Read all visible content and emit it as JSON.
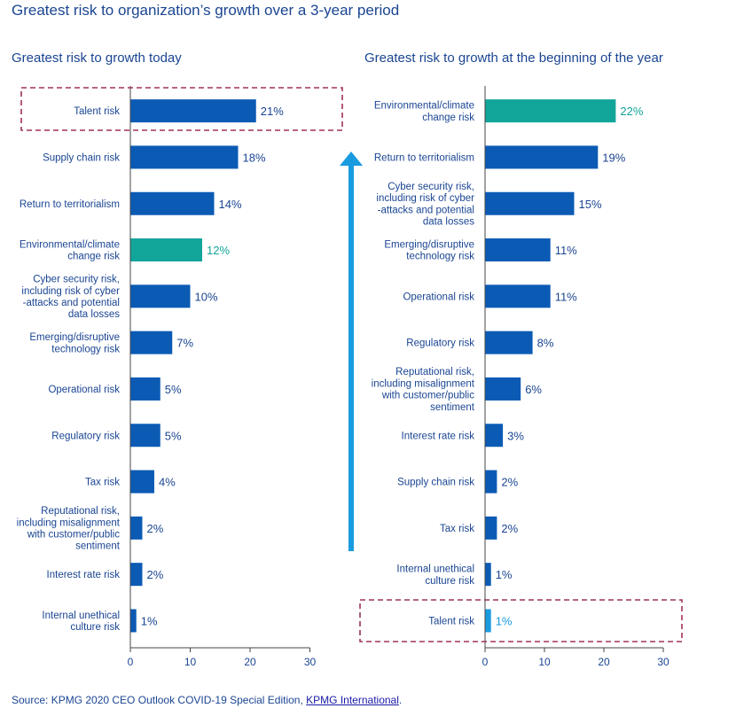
{
  "page_title": "Greatest risk to organization’s growth over a 3-year period",
  "source": {
    "prefix": "Source: KPMG 2020 CEO Outlook COVID-19 Special Edition, ",
    "link_text": "KPMG International",
    "suffix": "."
  },
  "colors": {
    "bar": "#0b5bb5",
    "highlight_bar": "#12a59a",
    "light_bar": "#1a9be0",
    "arrow": "#1a9be0",
    "dashed_box": "#a0325a",
    "text": "#1a4592"
  },
  "chart_data": [
    {
      "type": "bar",
      "orientation": "horizontal",
      "title": "Greatest risk to growth today",
      "categories": [
        "Talent risk",
        "Supply chain risk",
        "Return to territorialism",
        "Environmental/climate\nchange risk",
        "Cyber security risk,\nincluding risk of cyber\n-attacks and potential\ndata losses",
        "Emerging/disruptive\ntechnology risk",
        "Operational risk",
        "Regulatory risk",
        "Tax risk",
        "Reputational risk,\nincluding misalignment\nwith customer/public\nsentiment",
        "Interest rate risk",
        "Internal unethical\nculture risk"
      ],
      "values": [
        21,
        18,
        14,
        12,
        10,
        7,
        5,
        5,
        4,
        2,
        2,
        1
      ],
      "value_labels": [
        "21%",
        "18%",
        "14%",
        "12%",
        "10%",
        "7%",
        "5%",
        "5%",
        "4%",
        "2%",
        "2%",
        "1%"
      ],
      "bar_colors": [
        "bar",
        "bar",
        "bar",
        "highlight_bar",
        "bar",
        "bar",
        "bar",
        "bar",
        "bar",
        "bar",
        "bar",
        "bar"
      ],
      "highlighted_category": "Talent risk",
      "xlim": [
        0,
        30
      ],
      "xticks": [
        0,
        10,
        20,
        30
      ]
    },
    {
      "type": "bar",
      "orientation": "horizontal",
      "title": "Greatest risk to growth at the beginning of the year",
      "categories": [
        "Environmental/climate\nchange risk",
        "Return to territorialism",
        "Cyber security risk,\nincluding risk of cyber\n-attacks and potential\ndata losses",
        "Emerging/disruptive\ntechnology risk",
        "Operational risk",
        "Regulatory risk",
        "Reputational risk,\nincluding misalignment\nwith customer/public\nsentiment",
        "Interest rate risk",
        "Supply chain risk",
        "Tax risk",
        "Internal unethical\nculture risk",
        "Talent risk"
      ],
      "values": [
        22,
        19,
        15,
        11,
        11,
        8,
        6,
        3,
        2,
        2,
        1,
        1
      ],
      "value_labels": [
        "22%",
        "19%",
        "15%",
        "11%",
        "11%",
        "8%",
        "6%",
        "3%",
        "2%",
        "2%",
        "1%",
        "1%"
      ],
      "bar_colors": [
        "highlight_bar",
        "bar",
        "bar",
        "bar",
        "bar",
        "bar",
        "bar",
        "bar",
        "bar",
        "bar",
        "bar",
        "light_bar"
      ],
      "highlighted_category": "Talent risk",
      "xlim": [
        0,
        30
      ],
      "xticks": [
        0,
        10,
        20,
        30
      ]
    }
  ]
}
